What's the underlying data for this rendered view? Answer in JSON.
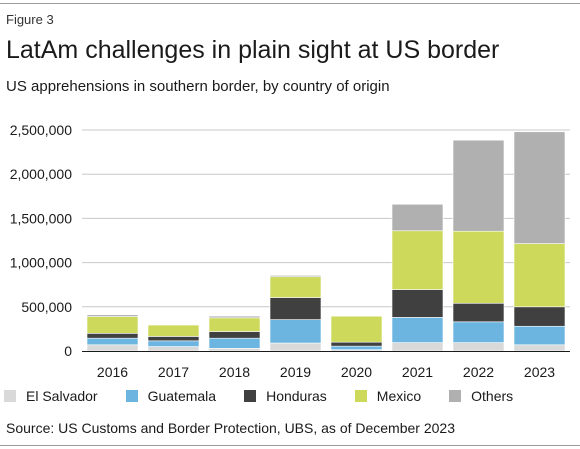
{
  "figure_label": "Figure 3",
  "title": "LatAm challenges in plain sight at US border",
  "subtitle": "US apprehensions in southern border, by country of origin",
  "source": "Source: US Customs and Border Protection, UBS, as of December 2023",
  "colors": {
    "El Salvador": "#d9d9d9",
    "Guatemala": "#6bb5e0",
    "Honduras": "#404040",
    "Mexico": "#ccd95a",
    "Others": "#b0b0b0"
  },
  "chart_data": {
    "type": "bar",
    "stacked": true,
    "categories": [
      "2016",
      "2017",
      "2018",
      "2019",
      "2020",
      "2021",
      "2022",
      "2023"
    ],
    "series": [
      {
        "name": "El Salvador",
        "values": [
          70000,
          50000,
          30000,
          90000,
          15000,
          95000,
          95000,
          70000
        ]
      },
      {
        "name": "Guatemala",
        "values": [
          75000,
          65000,
          115000,
          265000,
          40000,
          285000,
          235000,
          210000
        ]
      },
      {
        "name": "Honduras",
        "values": [
          55000,
          50000,
          75000,
          250000,
          45000,
          315000,
          210000,
          220000
        ]
      },
      {
        "name": "Mexico",
        "values": [
          190000,
          130000,
          155000,
          235000,
          295000,
          665000,
          815000,
          715000
        ]
      },
      {
        "name": "Others",
        "values": [
          20000,
          5000,
          20000,
          15000,
          5000,
          300000,
          1030000,
          1265000
        ]
      }
    ],
    "ylim": [
      0,
      2500000
    ],
    "yticks": [
      0,
      500000,
      1000000,
      1500000,
      2000000,
      2500000
    ],
    "ytick_labels": [
      "0",
      "500,000",
      "1,000,000",
      "1,500,000",
      "2,000,000",
      "2,500,000"
    ],
    "grid": true,
    "legend": "bottom"
  }
}
